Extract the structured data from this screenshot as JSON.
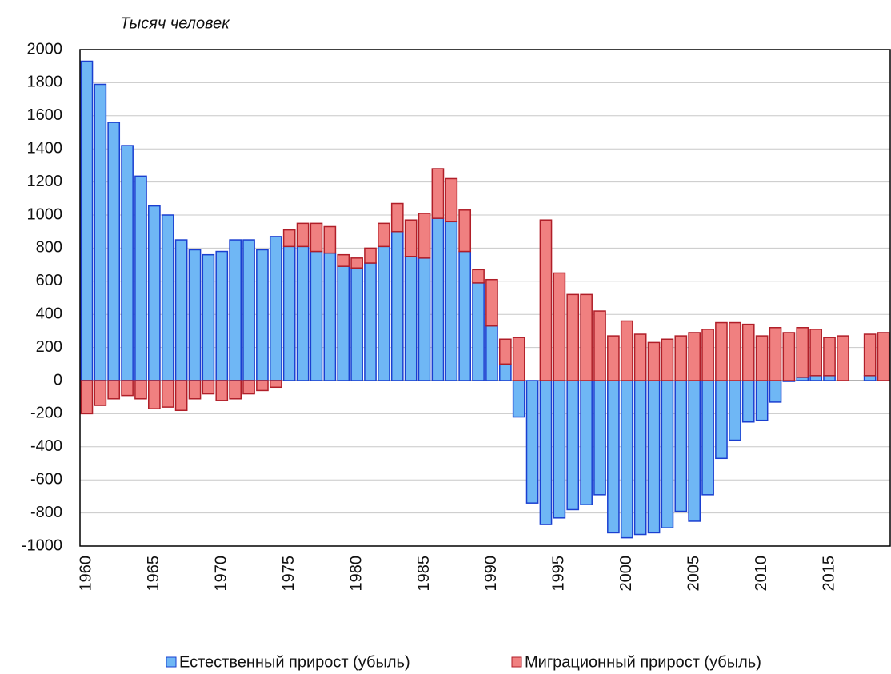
{
  "chart_data": {
    "type": "bar",
    "stacked": true,
    "axis_title": "Тысяч человек",
    "categories": [
      "1960",
      null,
      null,
      null,
      null,
      "1965",
      null,
      null,
      null,
      null,
      "1970",
      null,
      null,
      null,
      null,
      "1975",
      null,
      null,
      null,
      null,
      "1980",
      null,
      null,
      null,
      null,
      "1985",
      null,
      null,
      null,
      null,
      "1990",
      null,
      null,
      null,
      null,
      "1995",
      null,
      null,
      null,
      null,
      "2000",
      null,
      null,
      null,
      null,
      "2005",
      null,
      null,
      null,
      null,
      "2010",
      null,
      null,
      null,
      null,
      "2015",
      null,
      null,
      null,
      null
    ],
    "series": [
      {
        "name": "Естественный прирост (убыль)",
        "color": "#6fb7f5",
        "stroke": "#1a3fd0",
        "values": [
          1930,
          1790,
          1560,
          1420,
          1235,
          1055,
          1000,
          850,
          790,
          760,
          780,
          850,
          850,
          790,
          870,
          810,
          810,
          780,
          770,
          690,
          680,
          710,
          810,
          900,
          750,
          740,
          980,
          960,
          780,
          590,
          330,
          100,
          -220,
          -740,
          -870,
          -830,
          -780,
          -750,
          -690,
          -920,
          -950,
          -930,
          -920,
          -890,
          -790,
          -850,
          -690,
          -470,
          -360,
          -250,
          -240,
          -130,
          -5,
          20,
          30,
          30,
          0,
          null,
          30,
          0
        ]
      },
      {
        "name": "Миграционный  прирост (убыль)",
        "color": "#f08080",
        "stroke": "#b01e28",
        "values": [
          -200,
          -150,
          -110,
          -90,
          -110,
          -170,
          -160,
          -180,
          -110,
          -80,
          -120,
          -110,
          -80,
          -60,
          -40,
          100,
          140,
          170,
          160,
          70,
          60,
          90,
          140,
          170,
          220,
          270,
          300,
          260,
          250,
          80,
          280,
          150,
          260,
          null,
          970,
          650,
          520,
          520,
          420,
          270,
          360,
          280,
          230,
          250,
          270,
          290,
          310,
          350,
          350,
          340,
          270,
          320,
          290,
          300,
          280,
          230,
          270,
          null,
          250,
          290
        ]
      }
    ],
    "ylim": [
      -1000,
      2000
    ],
    "yticks": [
      -1000,
      -800,
      -600,
      -400,
      -200,
      0,
      200,
      400,
      600,
      800,
      1000,
      1200,
      1400,
      1600,
      1800,
      2000
    ],
    "grid": true,
    "legend": "bottom"
  }
}
